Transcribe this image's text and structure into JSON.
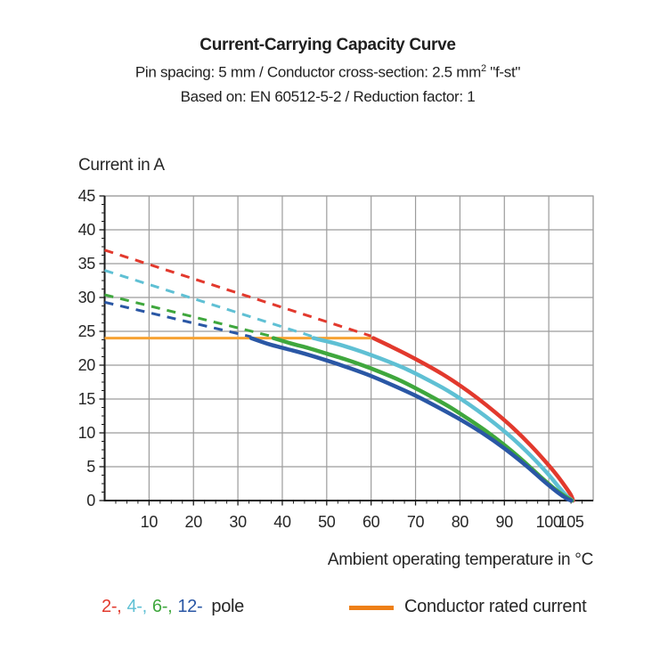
{
  "chart_data": {
    "type": "line",
    "title": "Current-Carrying Capacity Curve",
    "subtitle1": {
      "pre": "Pin spacing: 5 mm / Conductor cross-section: 2.5 mm",
      "sup": "2",
      "post": " \"f-st\""
    },
    "subtitle2": "Based on: EN 60512-5-2 / Reduction factor: 1",
    "ylabel": "Current in A",
    "xlabel": "Ambient operating temperature in °C",
    "xlim": [
      0,
      110
    ],
    "ylim": [
      0,
      45
    ],
    "xticks_labeled": [
      10,
      20,
      30,
      40,
      50,
      60,
      70,
      80,
      90,
      100,
      105
    ],
    "x_gridlines": [
      10,
      20,
      30,
      40,
      50,
      60,
      70,
      80,
      90,
      100,
      110
    ],
    "yticks_labeled": [
      0,
      5,
      10,
      15,
      20,
      25,
      30,
      35,
      40,
      45
    ],
    "x_minor_step": 2.5,
    "y_minor_step": 1.25,
    "grid": true,
    "grid_color": "#9c9c9c",
    "axis_color": "#1a1a1a",
    "conductor_rated_current": {
      "value": 24,
      "t_start": 0,
      "t_end": 60,
      "color": "#f7a233",
      "legend_color": "#ee7f17",
      "label": "Conductor rated current"
    },
    "series": [
      {
        "name": "2-pole",
        "legend_label": "2-",
        "color": "#e2392d",
        "dashed_limit": [
          [
            0,
            37
          ],
          [
            60,
            24.3
          ]
        ],
        "solid_curve": [
          [
            60.5,
            24
          ],
          [
            64,
            22.9
          ],
          [
            68,
            21.6
          ],
          [
            72,
            20.2
          ],
          [
            76,
            18.7
          ],
          [
            80,
            17.0
          ],
          [
            84,
            15.1
          ],
          [
            88,
            13.0
          ],
          [
            92,
            10.7
          ],
          [
            96,
            8.1
          ],
          [
            100,
            5.2
          ],
          [
            102,
            3.6
          ],
          [
            104,
            1.8
          ],
          [
            105,
            0.8
          ],
          [
            105.5,
            0
          ]
        ]
      },
      {
        "name": "4-pole",
        "legend_label": "4-",
        "color": "#5fc0d4",
        "dashed_limit": [
          [
            0,
            34
          ],
          [
            47,
            24.2
          ]
        ],
        "solid_curve": [
          [
            47,
            24
          ],
          [
            52,
            23.2
          ],
          [
            56,
            22.4
          ],
          [
            60,
            21.5
          ],
          [
            64,
            20.5
          ],
          [
            68,
            19.4
          ],
          [
            72,
            18.1
          ],
          [
            76,
            16.7
          ],
          [
            80,
            15.1
          ],
          [
            84,
            13.3
          ],
          [
            88,
            11.3
          ],
          [
            92,
            9.1
          ],
          [
            96,
            6.6
          ],
          [
            100,
            3.8
          ],
          [
            102,
            2.2
          ],
          [
            104,
            0.7
          ],
          [
            105.3,
            0
          ]
        ]
      },
      {
        "name": "6-pole",
        "legend_label": "6-",
        "color": "#3fa73d",
        "dashed_limit": [
          [
            0,
            30.4
          ],
          [
            38,
            24.2
          ]
        ],
        "solid_curve": [
          [
            38,
            24
          ],
          [
            42,
            23.2
          ],
          [
            46,
            22.5
          ],
          [
            50,
            21.7
          ],
          [
            54,
            20.9
          ],
          [
            58,
            20.0
          ],
          [
            62,
            19.0
          ],
          [
            66,
            17.9
          ],
          [
            70,
            16.6
          ],
          [
            74,
            15.2
          ],
          [
            78,
            13.7
          ],
          [
            82,
            12.0
          ],
          [
            86,
            10.2
          ],
          [
            90,
            8.2
          ],
          [
            94,
            6.0
          ],
          [
            98,
            3.6
          ],
          [
            101,
            1.9
          ],
          [
            103,
            0.9
          ],
          [
            105.2,
            0
          ]
        ]
      },
      {
        "name": "12-pole",
        "legend_label": "12-",
        "color": "#2a57a5",
        "dashed_limit": [
          [
            0,
            29.3
          ],
          [
            33,
            24.2
          ]
        ],
        "solid_curve": [
          [
            33,
            24
          ],
          [
            37,
            23.1
          ],
          [
            41,
            22.4
          ],
          [
            45,
            21.7
          ],
          [
            50,
            20.7
          ],
          [
            55,
            19.6
          ],
          [
            60,
            18.4
          ],
          [
            65,
            17.0
          ],
          [
            70,
            15.5
          ],
          [
            75,
            13.8
          ],
          [
            80,
            12.0
          ],
          [
            85,
            10.0
          ],
          [
            90,
            7.7
          ],
          [
            95,
            5.1
          ],
          [
            99,
            2.8
          ],
          [
            102,
            1.2
          ],
          [
            104,
            0.3
          ],
          [
            105,
            0
          ]
        ]
      }
    ],
    "legend": {
      "pole_suffix": "pole",
      "separator": ",",
      "text_color": "#262626"
    }
  }
}
